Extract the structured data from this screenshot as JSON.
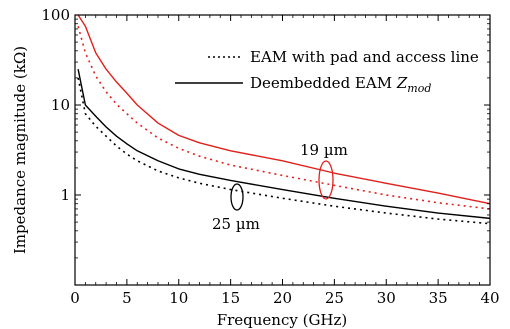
{
  "chart_data": {
    "type": "line",
    "title": "",
    "xlabel": "Frequency (GHz)",
    "ylabel": "Impedance magnitude (kΩ)",
    "xlim": [
      0,
      40
    ],
    "ylim": [
      0.1,
      100
    ],
    "yscale": "log",
    "grid": false,
    "legend_position": "top-right",
    "x_ticks": [
      "0",
      "5",
      "10",
      "15",
      "20",
      "25",
      "30",
      "35",
      "40"
    ],
    "y_ticks": [
      "1",
      "10",
      "100"
    ],
    "legend": [
      {
        "label": "EAM with pad and access line",
        "style": "dotted"
      },
      {
        "label": "Deembedded EAM Z_mod",
        "style": "solid"
      }
    ],
    "legend_text": {
      "line1": "EAM with pad and access line",
      "line2_prefix": "Deembedded EAM ",
      "line2_symbol": "Z",
      "line2_subscript": "mod"
    },
    "annotations": {
      "label_19": "19 µm",
      "label_25": "25 µm"
    },
    "colors": {
      "red": "#e0201b",
      "black": "#000000"
    },
    "series": [
      {
        "device": "19 µm",
        "kind": "deembedded",
        "style": "solid",
        "color": "#e0201b",
        "x": [
          0.3,
          1,
          2,
          3,
          4,
          5,
          6,
          8,
          10,
          12,
          15,
          20,
          25,
          30,
          35,
          40
        ],
        "y": [
          100,
          75,
          38,
          25,
          18,
          13.5,
          10,
          6.3,
          4.6,
          3.8,
          3.1,
          2.4,
          1.75,
          1.35,
          1.05,
          0.8
        ]
      },
      {
        "device": "19 µm",
        "kind": "with pad and access line",
        "style": "dotted",
        "color": "#e0201b",
        "x": [
          0.3,
          1,
          2,
          3,
          4,
          5,
          6,
          8,
          10,
          12,
          15,
          20,
          25,
          30,
          35,
          40
        ],
        "y": [
          75,
          38,
          21,
          14,
          10.2,
          8,
          6.3,
          4.3,
          3.3,
          2.7,
          2.15,
          1.65,
          1.28,
          1.0,
          0.82,
          0.7
        ]
      },
      {
        "device": "25 µm",
        "kind": "deembedded",
        "style": "solid",
        "color": "#000000",
        "x": [
          0.3,
          1,
          2,
          3,
          4,
          5,
          6,
          8,
          10,
          12,
          15,
          20,
          25,
          30,
          35,
          40
        ],
        "y": [
          25,
          10,
          7.5,
          5.7,
          4.5,
          3.7,
          3.1,
          2.4,
          1.95,
          1.7,
          1.45,
          1.15,
          0.92,
          0.75,
          0.63,
          0.55
        ]
      },
      {
        "device": "25 µm",
        "kind": "with pad and access line",
        "style": "dotted",
        "color": "#000000",
        "x": [
          0.3,
          1,
          2,
          3,
          4,
          5,
          6,
          8,
          10,
          12,
          15,
          20,
          25,
          30,
          35,
          40
        ],
        "y": [
          20,
          8,
          5.8,
          4.5,
          3.5,
          2.85,
          2.4,
          1.85,
          1.55,
          1.35,
          1.15,
          0.92,
          0.75,
          0.63,
          0.54,
          0.48
        ]
      }
    ]
  }
}
